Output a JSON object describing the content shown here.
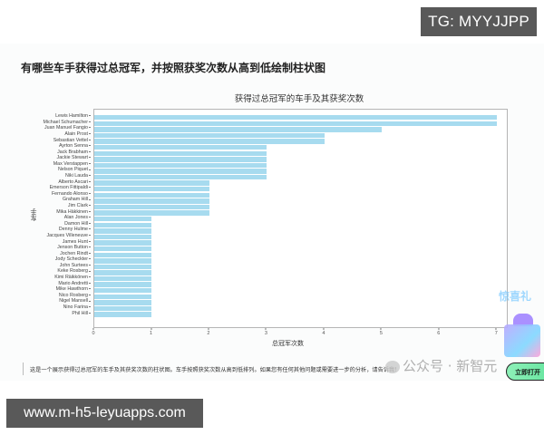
{
  "overlay": {
    "tg_badge": "TG: MYYJJPP",
    "site_badge": "www.m-h5-leyuapps.com"
  },
  "question": "有哪些车手获得过总冠军，并按照获奖次数从高到低绘制柱状图",
  "description": "这是一个展示获得过总冠军的车手及其获奖次数的柱状图。车手按照获奖次数从高到低排列。如果您有任何其他问题或需要进一步的分析，请告诉我！",
  "watermark": {
    "wechat_label": "公众号 · 新智元",
    "promo_text": "惊喜礼",
    "open_button": "立即打开"
  },
  "colors": {
    "bar": "#a7dbef",
    "badge_bg": "#595959"
  },
  "chart_data": {
    "type": "bar",
    "orientation": "horizontal",
    "title": "获得过总冠军的车手及其获奖次数",
    "xlabel": "总冠军次数",
    "ylabel": "车手",
    "xlim": [
      0,
      7.2
    ],
    "xticks": [
      "0",
      "1",
      "2",
      "3",
      "4",
      "5",
      "6",
      "7"
    ],
    "grid": false,
    "legend": null,
    "categories": [
      "Lewis Hamilton",
      "Michael Schumacher",
      "Juan Manuel Fangio",
      "Alain Prost",
      "Sebastian Vettel",
      "Ayrton Senna",
      "Jack Brabham",
      "Jackie Stewart",
      "Max Verstappen",
      "Nelson Piquet",
      "Niki Lauda",
      "Alberto Ascari",
      "Emerson Fittipaldi",
      "Fernando Alonso",
      "Graham Hill",
      "Jim Clark",
      "Mika Häkkinen",
      "Alan Jones",
      "Damon Hill",
      "Denny Hulme",
      "Jacques Villeneuve",
      "James Hunt",
      "Jenson Button",
      "Jochen Rindt",
      "Jody Scheckter",
      "John Surtees",
      "Keke Rosberg",
      "Kimi Räikkönen",
      "Mario Andretti",
      "Mike Hawthorn",
      "Nico Rosberg",
      "Nigel Mansell",
      "Nino Farina",
      "Phil Hill"
    ],
    "values": [
      7,
      7,
      5,
      4,
      4,
      3,
      3,
      3,
      3,
      3,
      3,
      2,
      2,
      2,
      2,
      2,
      2,
      1,
      1,
      1,
      1,
      1,
      1,
      1,
      1,
      1,
      1,
      1,
      1,
      1,
      1,
      1,
      1,
      1
    ]
  }
}
